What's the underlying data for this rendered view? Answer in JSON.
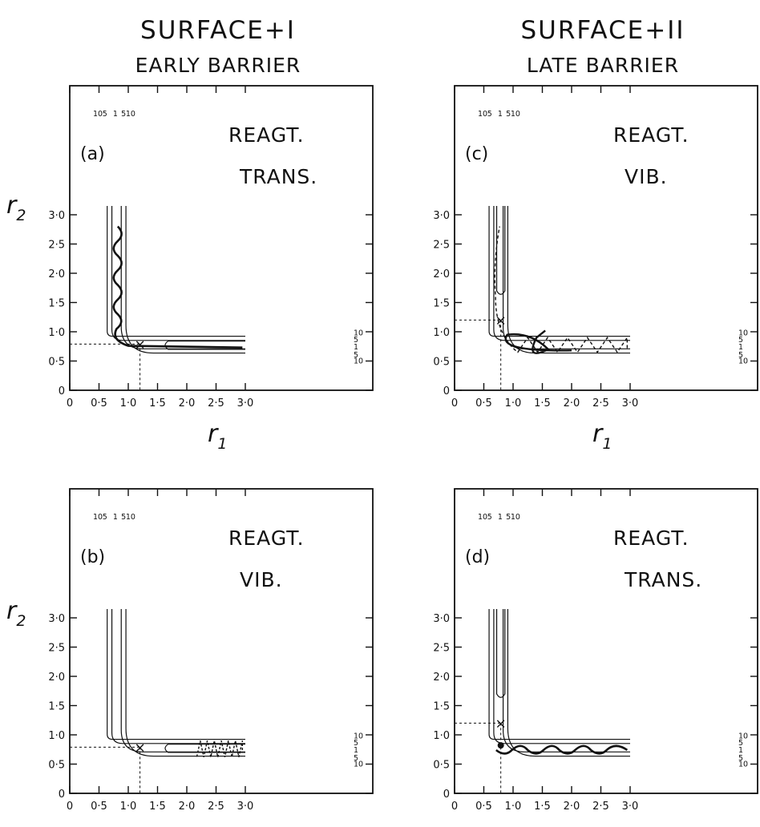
{
  "columns": [
    {
      "title": "SURFACE+I",
      "subtitle": "EARLY BARRIER"
    },
    {
      "title": "SURFACE+II",
      "subtitle": "LATE BARRIER"
    }
  ],
  "axis": {
    "x_label": "r",
    "x_sub": "1",
    "y_label": "r",
    "y_sub": "2",
    "ticks": [
      "0",
      "0·5",
      "1·0",
      "1·5",
      "2·0",
      "2·5",
      "3·0"
    ]
  },
  "contour_levels": [
    "10",
    "5",
    "1",
    "5",
    "10"
  ],
  "panels": [
    {
      "id": "a",
      "label": "(a)",
      "line1": "REAGT.",
      "line2": "TRANS.",
      "saddle": [
        1.2,
        0.79
      ],
      "surface": "I",
      "trajectory": "solid"
    },
    {
      "id": "b",
      "label": "(b)",
      "line1": "REAGT.",
      "line2": "VIB.",
      "saddle": [
        1.2,
        0.79
      ],
      "surface": "I",
      "trajectory": "dashed"
    },
    {
      "id": "c",
      "label": "(c)",
      "line1": "REAGT.",
      "line2": "VIB.",
      "saddle": [
        0.79,
        1.2
      ],
      "surface": "II",
      "trajectory": "both"
    },
    {
      "id": "d",
      "label": "(d)",
      "line1": "REAGT.",
      "line2": "TRANS.",
      "saddle": [
        0.79,
        1.2
      ],
      "surface": "II",
      "trajectory": "solid"
    }
  ]
}
